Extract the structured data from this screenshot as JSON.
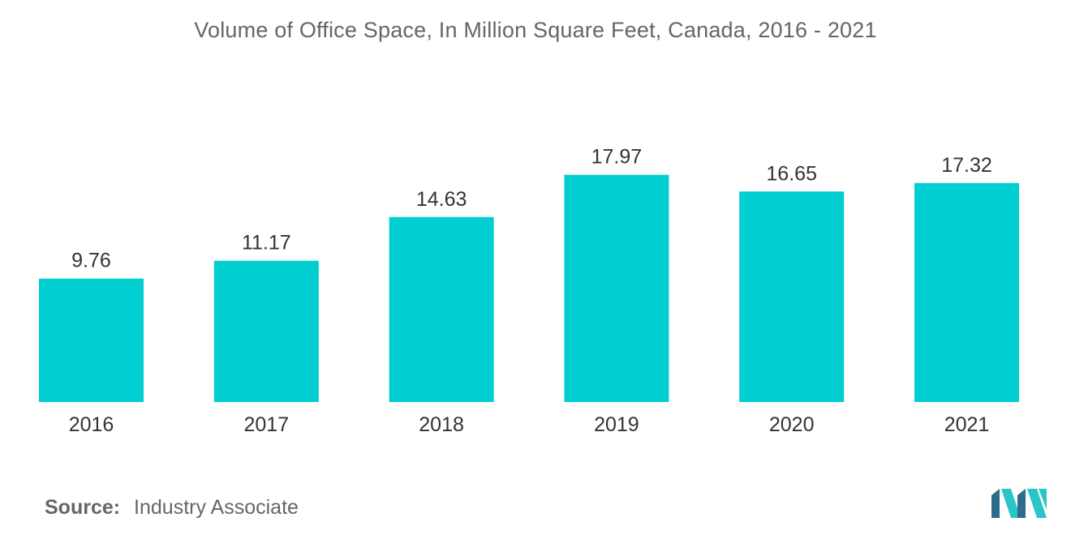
{
  "title": "Volume of Office Space, In Million Square Feet, Canada, 2016 - 2021",
  "source": {
    "label": "Source:",
    "text": "Industry Associate"
  },
  "colors": {
    "bar": "#00CED1",
    "logo_dark": "#2E6C8C",
    "logo_light": "#2BC5C8"
  },
  "chart_data": {
    "type": "bar",
    "categories": [
      "2016",
      "2017",
      "2018",
      "2019",
      "2020",
      "2021"
    ],
    "values": [
      9.76,
      11.17,
      14.63,
      17.97,
      16.65,
      17.32
    ],
    "value_labels": [
      "9.76",
      "11.17",
      "14.63",
      "17.97",
      "16.65",
      "17.32"
    ],
    "title": "Volume of Office Space, In Million Square Feet, Canada, 2016 - 2021",
    "xlabel": "",
    "ylabel": "",
    "ylim": [
      0,
      20
    ],
    "grid": false,
    "legend": "none"
  }
}
